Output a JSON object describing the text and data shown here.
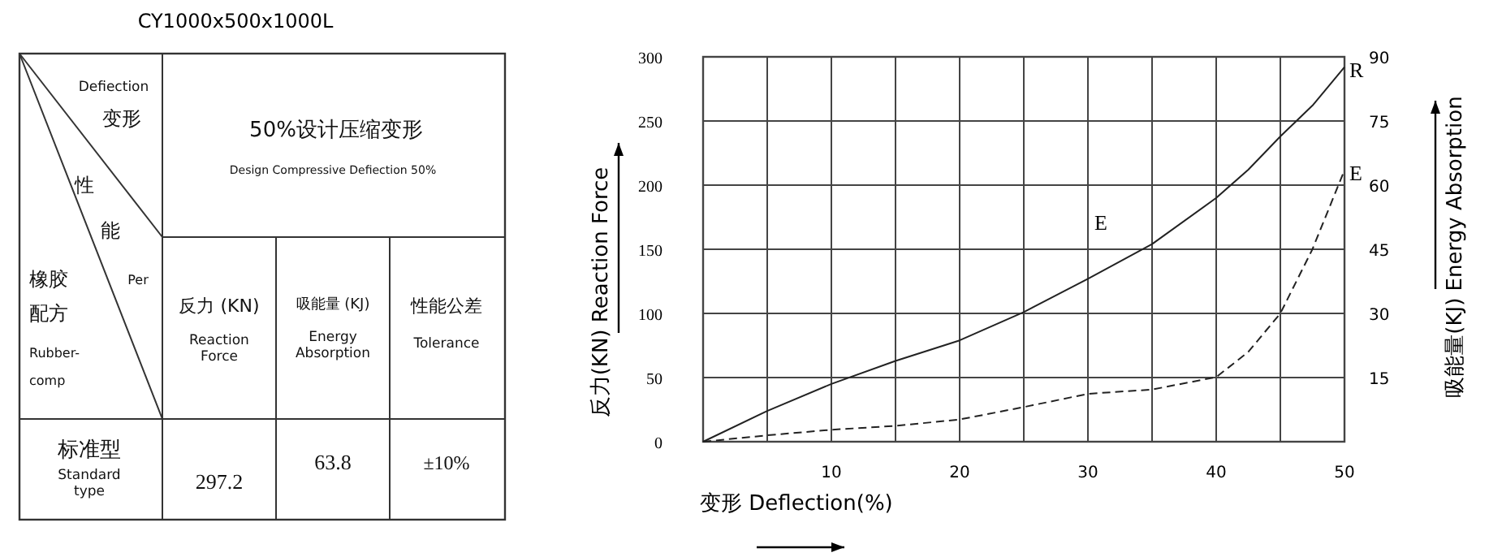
{
  "chart_data": [
    {
      "type": "other",
      "title": "CY1000x500x1000L",
      "annotations": [
        "Defiection",
        "变形",
        "性",
        "能",
        "Per",
        "橡胶",
        "配方",
        "Rubber-",
        "comp",
        "50%设计压缩变形",
        "Design Compressive Defiection 50%",
        "反力 (KN)",
        "Reaction Force",
        "吸能量 (KJ)",
        "Energy Absorption",
        "性能公差",
        "Tolerance",
        "标准型",
        "Standard type",
        "297.2",
        "63.8",
        "±10%"
      ]
    },
    {
      "type": "line",
      "xlabel": "变形 Deflection(%)",
      "ylabel": "反力(KN) Reaction Force",
      "y2label": "吸能量(KJ) Energy Absorption",
      "xlim": [
        0,
        50
      ],
      "ylim": [
        0,
        300
      ],
      "y2lim": [
        0,
        90
      ],
      "xticks": [
        {
          "value": 0,
          "label": null
        },
        {
          "value": 5,
          "label": null
        },
        10,
        {
          "value": 15,
          "label": null
        },
        20,
        {
          "value": 25,
          "label": null
        },
        30,
        {
          "value": 35,
          "label": null
        },
        40,
        {
          "value": 45,
          "label": null
        },
        50
      ],
      "yticks": [
        0,
        50,
        100,
        150,
        200,
        250,
        300
      ],
      "y2ticks": [
        15,
        30,
        45,
        60,
        75,
        90
      ],
      "grid": true,
      "x": [
        0,
        5,
        10,
        15,
        20,
        25,
        30,
        35,
        40,
        42.5,
        45,
        47.5,
        50
      ],
      "series": [
        {
          "name": "R",
          "color": "#222222",
          "line_style": "solid",
          "values": [
            0,
            24,
            45,
            63,
            79,
            101,
            127,
            154,
            190,
            212,
            238,
            262,
            292
          ]
        },
        {
          "name": "E",
          "color": "#222222",
          "line_style": "dashed",
          "axis": "y2",
          "values": [
            0,
            1.5,
            2.8,
            3.7,
            5.2,
            8.1,
            11.2,
            12.2,
            15.1,
            21,
            30,
            45,
            63.5
          ]
        }
      ],
      "annotations": [
        "E"
      ]
    }
  ]
}
